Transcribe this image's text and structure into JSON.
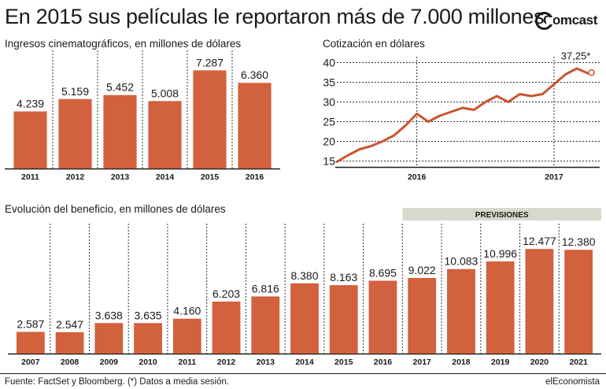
{
  "title": "En 2015 sus películas le reportaron más de 7.000 millones",
  "logo": {
    "text": "Comcast"
  },
  "footer": {
    "source": "Fuente: FactSet y Bloomberg. (*) Datos a media sesión.",
    "credit": "elEconomista"
  },
  "colors": {
    "bar": "#d2613e",
    "line": "#c9552f",
    "previsiones_bg": "#d9d8cc",
    "axis": "#1a1a1a"
  },
  "chart_data": [
    {
      "type": "bar",
      "title": "Ingresos cinematográficos, en millones de dólares",
      "categories": [
        "2011",
        "2012",
        "2013",
        "2014",
        "2015",
        "2016"
      ],
      "values": [
        4239,
        5159,
        5452,
        5008,
        7287,
        6360
      ],
      "value_labels": [
        "4.239",
        "5.159",
        "5.452",
        "5.008",
        "7.287",
        "6.360"
      ],
      "ylim": [
        0,
        7600
      ],
      "grid": "vertical dashed separators"
    },
    {
      "type": "line",
      "title": "Cotización en dólares",
      "yticks": [
        15,
        20,
        25,
        30,
        35,
        40
      ],
      "ylim": [
        13.5,
        41.5
      ],
      "xticks": [
        "2016",
        "2017"
      ],
      "annotation": "37,25*",
      "x": [
        "2015-06",
        "2015-07",
        "2015-08",
        "2015-09",
        "2015-10",
        "2015-11",
        "2015-12",
        "2016-01",
        "2016-02",
        "2016-03",
        "2016-04",
        "2016-05",
        "2016-06",
        "2016-07",
        "2016-08",
        "2016-09",
        "2016-10",
        "2016-11",
        "2016-12",
        "2017-01",
        "2017-02",
        "2017-03",
        "2017-04"
      ],
      "y": [
        14.8,
        16.5,
        18.0,
        18.8,
        20.0,
        21.5,
        24.0,
        27.0,
        25.0,
        26.5,
        27.5,
        28.5,
        28.0,
        30.0,
        31.5,
        30.0,
        32.0,
        31.5,
        32.0,
        34.5,
        37.0,
        38.5,
        37.25
      ],
      "grid": "dashed"
    },
    {
      "type": "bar",
      "title": "Evolución del beneficio, en millones de dólares",
      "categories": [
        "2007",
        "2008",
        "2009",
        "2010",
        "2011",
        "2012",
        "2013",
        "2014",
        "2015",
        "2016",
        "2017",
        "2018",
        "2019",
        "2020",
        "2021"
      ],
      "values": [
        2587,
        2547,
        3638,
        3635,
        4160,
        6203,
        6816,
        8380,
        8163,
        8695,
        9022,
        10083,
        10996,
        12477,
        12380
      ],
      "value_labels": [
        "2.587",
        "2.547",
        "3.638",
        "3.635",
        "4.160",
        "6.203",
        "6.816",
        "8.380",
        "8.163",
        "8.695",
        "9.022",
        "10.083",
        "10.996",
        "12.477",
        "12.380"
      ],
      "ylim": [
        0,
        14000
      ],
      "forecast_label": "PREVISIONES",
      "forecast_from": "2017",
      "grid": "vertical dashed separators"
    }
  ]
}
